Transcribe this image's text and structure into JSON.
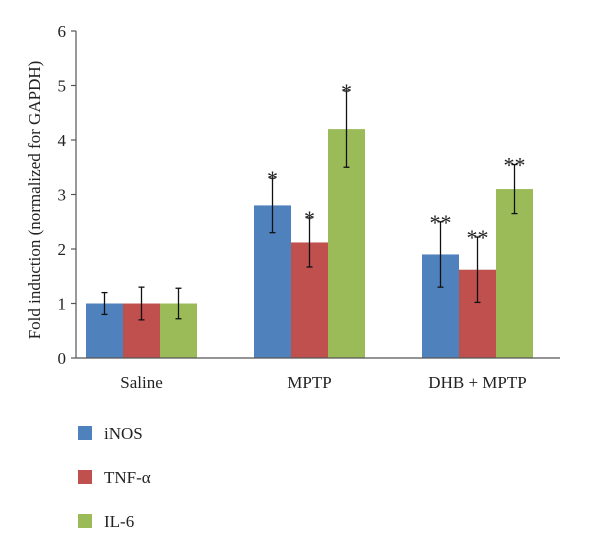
{
  "chart_data": {
    "type": "bar",
    "title": "",
    "xlabel": "",
    "ylabel": "Fold induction (normalized for GAPDH)",
    "ylim": [
      0,
      6
    ],
    "yticks": [
      0,
      1,
      2,
      3,
      4,
      5,
      6
    ],
    "grid": false,
    "legend_position": "bottom-left",
    "categories": [
      "Saline",
      "MPTP",
      "DHB + MPTP"
    ],
    "series": [
      {
        "name": "iNOS",
        "color": "#4F81BD",
        "values": [
          1.0,
          2.8,
          1.9
        ],
        "errors": [
          0.2,
          0.5,
          0.6
        ],
        "significance": [
          "",
          "*",
          "**"
        ]
      },
      {
        "name": "TNF-α",
        "color": "#C0504D",
        "values": [
          1.0,
          2.12,
          1.62
        ],
        "errors": [
          0.3,
          0.45,
          0.6
        ],
        "significance": [
          "",
          "*",
          "**"
        ]
      },
      {
        "name": "IL-6",
        "color": "#9BBB59",
        "values": [
          1.0,
          4.2,
          3.1
        ],
        "errors": [
          0.28,
          0.7,
          0.45
        ],
        "significance": [
          "",
          "*",
          "**"
        ]
      }
    ]
  }
}
